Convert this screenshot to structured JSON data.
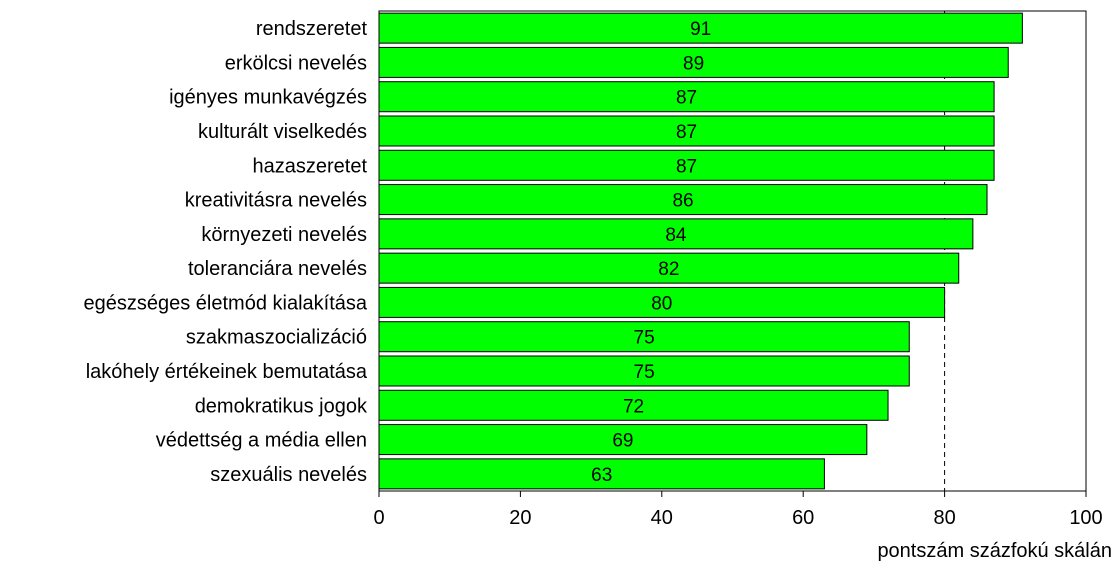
{
  "chart_data": {
    "type": "bar",
    "orientation": "horizontal",
    "categories": [
      "rendszeretet",
      "erkölcsi nevelés",
      "igényes munkavégzés",
      "kulturált viselkedés",
      "hazaszeretet",
      "kreativitásra nevelés",
      "környezeti nevelés",
      "toleranciára nevelés ",
      "egészséges életmód kialakítása",
      "szakmaszocializáció",
      "lakóhely értékeinek bemutatása",
      "demokratikus jogok",
      "védettség a média ellen",
      "szexuális nevelés"
    ],
    "values": [
      91,
      89,
      87,
      87,
      87,
      86,
      84,
      82,
      80,
      75,
      75,
      72,
      69,
      63
    ],
    "data_labels": [
      "91",
      "89",
      "87",
      "87",
      "87",
      "86",
      "84",
      "82",
      "80",
      "75",
      "75",
      "72",
      "69",
      "63"
    ],
    "xlim": [
      0,
      100
    ],
    "xticks": [
      "0",
      "20",
      "40",
      "60",
      "80",
      "100"
    ],
    "xtick_values": [
      0,
      20,
      40,
      60,
      80,
      100
    ],
    "xlabel": "pontszám százfokú skálán",
    "ylabel": "",
    "title": "",
    "reference_line": 80,
    "reference_line_style": "dashed",
    "grid": false,
    "legend": "none",
    "bar_color": "#00ff00",
    "bar_border_color": "#000000"
  }
}
